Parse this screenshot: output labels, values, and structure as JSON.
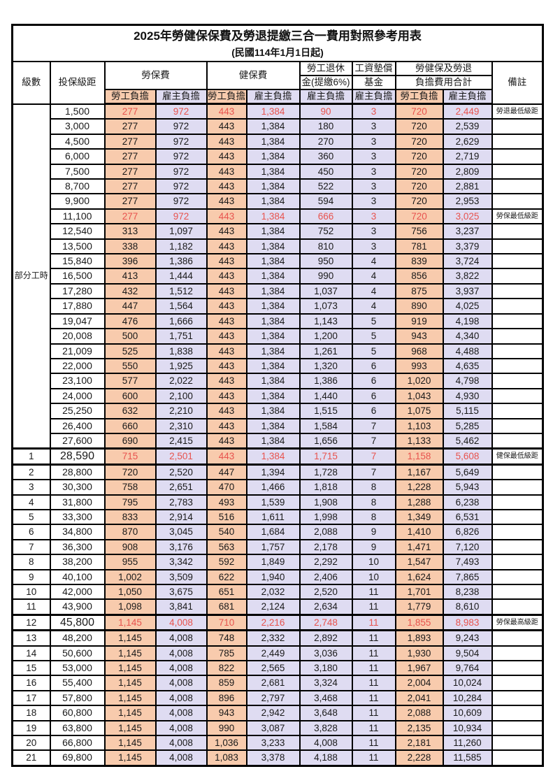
{
  "title": "2025年勞健保保費及勞退提繳三合一費用對照參考用表",
  "subtitle": "(民國114年1月1日起)",
  "header": {
    "level": "級數",
    "bracket": "投保級距",
    "labor_ins": "勞保費",
    "health_ins": "健保費",
    "pension_line1": "勞工退休",
    "pension_line2": "金(提繳6%)",
    "wage_fund_line1": "工資墊償",
    "wage_fund_line2": "基金",
    "total_line1": "勞健保及勞退",
    "total_line2": "負擔費用合計",
    "employee": "勞工負擔",
    "employer": "雇主負擔",
    "remark": "備註"
  },
  "part_time_label": "部分工時",
  "colors": {
    "employee_bg": "#F8CBAD",
    "employer_bg": "#DFDCF2",
    "highlight_text": "#E8534E",
    "border": "#000000"
  },
  "rows": [
    {
      "bracket": "1,500",
      "values": [
        "277",
        "972",
        "443",
        "1,384",
        "90",
        "3",
        "720",
        "2,449"
      ],
      "remark": "勞退最低級距",
      "highlight": true
    },
    {
      "bracket": "3,000",
      "values": [
        "277",
        "972",
        "443",
        "1,384",
        "180",
        "3",
        "720",
        "2,539"
      ]
    },
    {
      "bracket": "4,500",
      "values": [
        "277",
        "972",
        "443",
        "1,384",
        "270",
        "3",
        "720",
        "2,629"
      ]
    },
    {
      "bracket": "6,000",
      "values": [
        "277",
        "972",
        "443",
        "1,384",
        "360",
        "3",
        "720",
        "2,719"
      ]
    },
    {
      "bracket": "7,500",
      "values": [
        "277",
        "972",
        "443",
        "1,384",
        "450",
        "3",
        "720",
        "2,809"
      ]
    },
    {
      "bracket": "8,700",
      "values": [
        "277",
        "972",
        "443",
        "1,384",
        "522",
        "3",
        "720",
        "2,881"
      ]
    },
    {
      "bracket": "9,900",
      "values": [
        "277",
        "972",
        "443",
        "1,384",
        "594",
        "3",
        "720",
        "2,953"
      ]
    },
    {
      "bracket": "11,100",
      "values": [
        "277",
        "972",
        "443",
        "1,384",
        "666",
        "3",
        "720",
        "3,025"
      ],
      "remark": "勞保最低級距",
      "highlight": true
    },
    {
      "bracket": "12,540",
      "values": [
        "313",
        "1,097",
        "443",
        "1,384",
        "752",
        "3",
        "756",
        "3,237"
      ]
    },
    {
      "bracket": "13,500",
      "values": [
        "338",
        "1,182",
        "443",
        "1,384",
        "810",
        "3",
        "781",
        "3,379"
      ]
    },
    {
      "bracket": "15,840",
      "values": [
        "396",
        "1,386",
        "443",
        "1,384",
        "950",
        "4",
        "839",
        "3,724"
      ]
    },
    {
      "bracket": "16,500",
      "values": [
        "413",
        "1,444",
        "443",
        "1,384",
        "990",
        "4",
        "856",
        "3,822"
      ]
    },
    {
      "bracket": "17,280",
      "values": [
        "432",
        "1,512",
        "443",
        "1,384",
        "1,037",
        "4",
        "875",
        "3,937"
      ]
    },
    {
      "bracket": "17,880",
      "values": [
        "447",
        "1,564",
        "443",
        "1,384",
        "1,073",
        "4",
        "890",
        "4,025"
      ]
    },
    {
      "bracket": "19,047",
      "values": [
        "476",
        "1,666",
        "443",
        "1,384",
        "1,143",
        "5",
        "919",
        "4,198"
      ]
    },
    {
      "bracket": "20,008",
      "values": [
        "500",
        "1,751",
        "443",
        "1,384",
        "1,200",
        "5",
        "943",
        "4,340"
      ]
    },
    {
      "bracket": "21,009",
      "values": [
        "525",
        "1,838",
        "443",
        "1,384",
        "1,261",
        "5",
        "968",
        "4,488"
      ]
    },
    {
      "bracket": "22,000",
      "values": [
        "550",
        "1,925",
        "443",
        "1,384",
        "1,320",
        "6",
        "993",
        "4,635"
      ]
    },
    {
      "bracket": "23,100",
      "values": [
        "577",
        "2,022",
        "443",
        "1,384",
        "1,386",
        "6",
        "1,020",
        "4,798"
      ]
    },
    {
      "bracket": "24,000",
      "values": [
        "600",
        "2,100",
        "443",
        "1,384",
        "1,440",
        "6",
        "1,043",
        "4,930"
      ]
    },
    {
      "bracket": "25,250",
      "values": [
        "632",
        "2,210",
        "443",
        "1,384",
        "1,515",
        "6",
        "1,075",
        "5,115"
      ]
    },
    {
      "bracket": "26,400",
      "values": [
        "660",
        "2,310",
        "443",
        "1,384",
        "1,584",
        "7",
        "1,103",
        "5,285"
      ]
    },
    {
      "bracket": "27,600",
      "values": [
        "690",
        "2,415",
        "443",
        "1,384",
        "1,656",
        "7",
        "1,133",
        "5,462"
      ]
    },
    {
      "level": "1",
      "bracket": "28,590",
      "values": [
        "715",
        "2,501",
        "443",
        "1,384",
        "1,715",
        "7",
        "1,158",
        "5,608"
      ],
      "remark": "健保最低級距",
      "highlight": true,
      "bold": true,
      "thick": true
    },
    {
      "level": "2",
      "bracket": "28,800",
      "values": [
        "720",
        "2,520",
        "447",
        "1,394",
        "1,728",
        "7",
        "1,167",
        "5,649"
      ]
    },
    {
      "level": "3",
      "bracket": "30,300",
      "values": [
        "758",
        "2,651",
        "470",
        "1,466",
        "1,818",
        "8",
        "1,228",
        "5,943"
      ]
    },
    {
      "level": "4",
      "bracket": "31,800",
      "values": [
        "795",
        "2,783",
        "493",
        "1,539",
        "1,908",
        "8",
        "1,288",
        "6,238"
      ]
    },
    {
      "level": "5",
      "bracket": "33,300",
      "values": [
        "833",
        "2,914",
        "516",
        "1,611",
        "1,998",
        "8",
        "1,349",
        "6,531"
      ]
    },
    {
      "level": "6",
      "bracket": "34,800",
      "values": [
        "870",
        "3,045",
        "540",
        "1,684",
        "2,088",
        "9",
        "1,410",
        "6,826"
      ]
    },
    {
      "level": "7",
      "bracket": "36,300",
      "values": [
        "908",
        "3,176",
        "563",
        "1,757",
        "2,178",
        "9",
        "1,471",
        "7,120"
      ]
    },
    {
      "level": "8",
      "bracket": "38,200",
      "values": [
        "955",
        "3,342",
        "592",
        "1,849",
        "2,292",
        "10",
        "1,547",
        "7,493"
      ]
    },
    {
      "level": "9",
      "bracket": "40,100",
      "values": [
        "1,002",
        "3,509",
        "622",
        "1,940",
        "2,406",
        "10",
        "1,624",
        "7,865"
      ]
    },
    {
      "level": "10",
      "bracket": "42,000",
      "values": [
        "1,050",
        "3,675",
        "651",
        "2,032",
        "2,520",
        "11",
        "1,701",
        "8,238"
      ]
    },
    {
      "level": "11",
      "bracket": "43,900",
      "values": [
        "1,098",
        "3,841",
        "681",
        "2,124",
        "2,634",
        "11",
        "1,779",
        "8,610"
      ]
    },
    {
      "level": "12",
      "bracket": "45,800",
      "values": [
        "1,145",
        "4,008",
        "710",
        "2,216",
        "2,748",
        "11",
        "1,855",
        "8,983"
      ],
      "remark": "勞保最高級距",
      "highlight": true,
      "bold": true,
      "thick": true
    },
    {
      "level": "13",
      "bracket": "48,200",
      "values": [
        "1,145",
        "4,008",
        "748",
        "2,332",
        "2,892",
        "11",
        "1,893",
        "9,243"
      ]
    },
    {
      "level": "14",
      "bracket": "50,600",
      "values": [
        "1,145",
        "4,008",
        "785",
        "2,449",
        "3,036",
        "11",
        "1,930",
        "9,504"
      ]
    },
    {
      "level": "15",
      "bracket": "53,000",
      "values": [
        "1,145",
        "4,008",
        "822",
        "2,565",
        "3,180",
        "11",
        "1,967",
        "9,764"
      ]
    },
    {
      "level": "16",
      "bracket": "55,400",
      "values": [
        "1,145",
        "4,008",
        "859",
        "2,681",
        "3,324",
        "11",
        "2,004",
        "10,024"
      ]
    },
    {
      "level": "17",
      "bracket": "57,800",
      "values": [
        "1,145",
        "4,008",
        "896",
        "2,797",
        "3,468",
        "11",
        "2,041",
        "10,284"
      ]
    },
    {
      "level": "18",
      "bracket": "60,800",
      "values": [
        "1,145",
        "4,008",
        "943",
        "2,942",
        "3,648",
        "11",
        "2,088",
        "10,609"
      ]
    },
    {
      "level": "19",
      "bracket": "63,800",
      "values": [
        "1,145",
        "4,008",
        "990",
        "3,087",
        "3,828",
        "11",
        "2,135",
        "10,934"
      ]
    },
    {
      "level": "20",
      "bracket": "66,800",
      "values": [
        "1,145",
        "4,008",
        "1,036",
        "3,233",
        "4,008",
        "11",
        "2,181",
        "11,260"
      ]
    },
    {
      "level": "21",
      "bracket": "69,800",
      "values": [
        "1,145",
        "4,008",
        "1,083",
        "3,378",
        "4,188",
        "11",
        "2,228",
        "11,585"
      ]
    }
  ]
}
